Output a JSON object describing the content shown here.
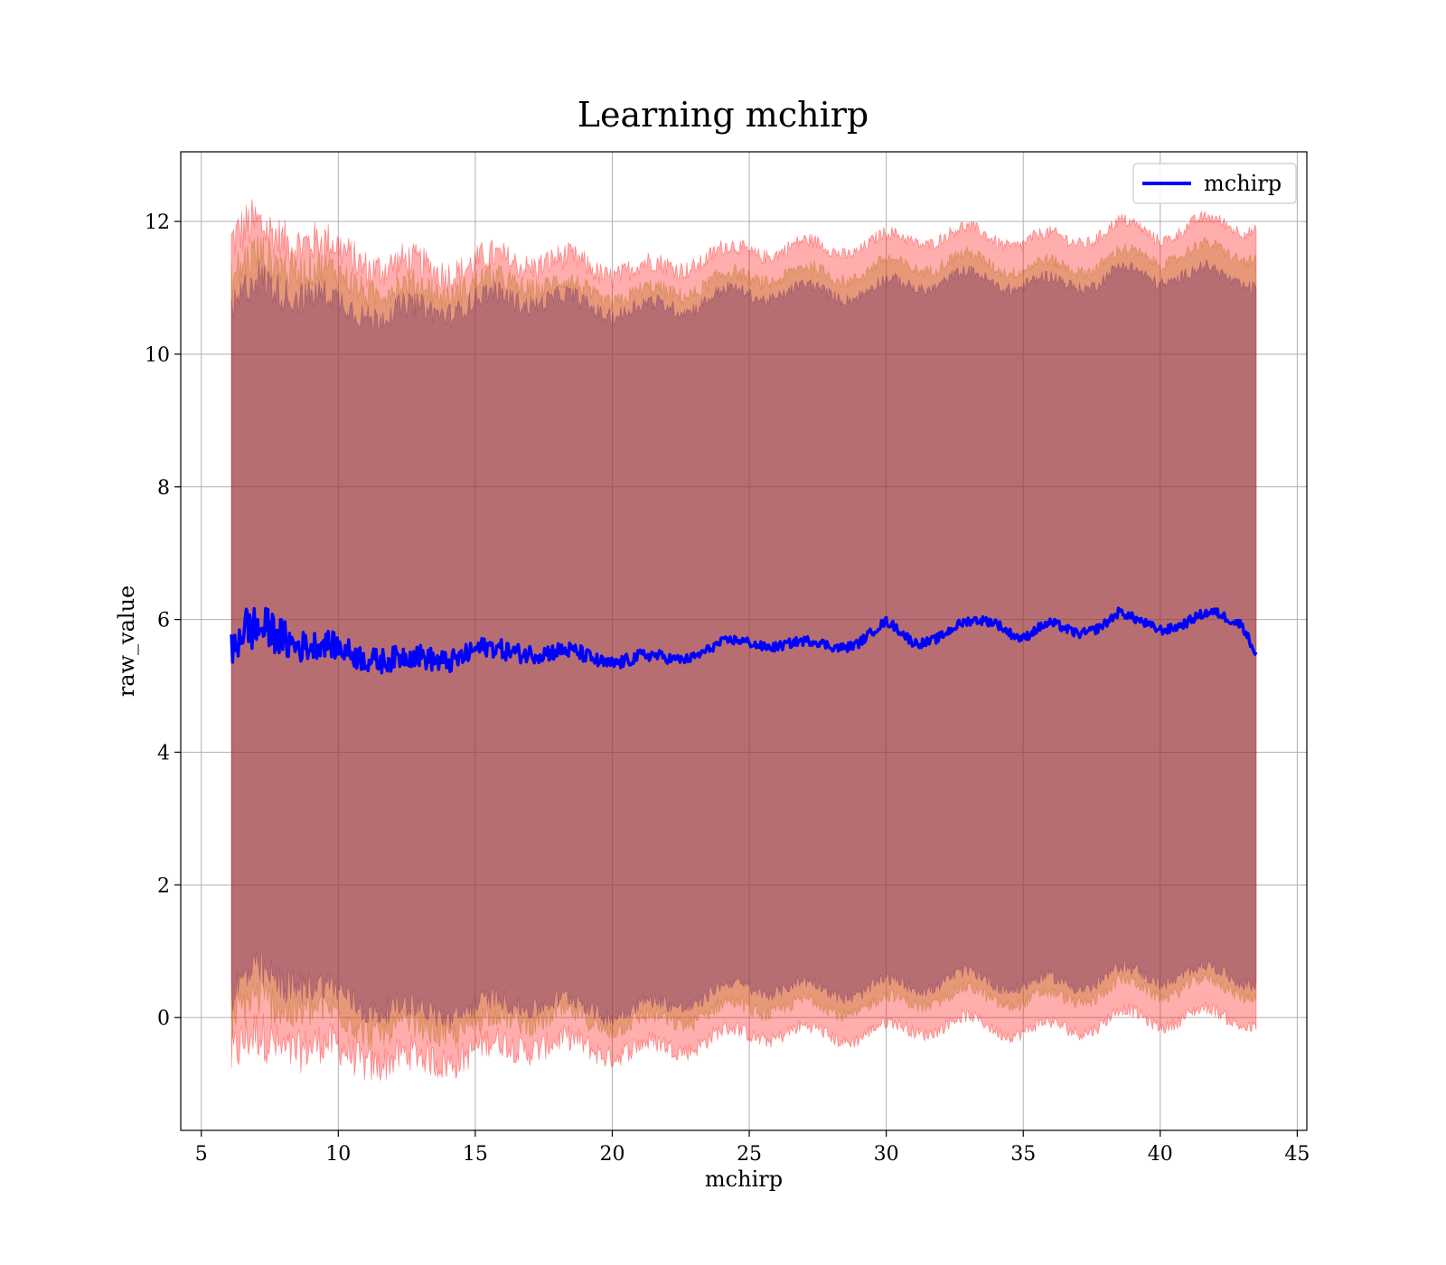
{
  "chart_data": {
    "type": "area",
    "title": "Learning mchirp",
    "xlabel": "mchirp",
    "ylabel": "raw_value",
    "xlim": [
      4.25,
      45.35
    ],
    "ylim": [
      -1.7,
      13.05
    ],
    "xticks": [
      5,
      10,
      15,
      20,
      25,
      30,
      35,
      40,
      45
    ],
    "yticks": [
      0,
      2,
      4,
      6,
      8,
      10,
      12
    ],
    "x_tick_labels": [
      "5",
      "10",
      "15",
      "20",
      "25",
      "30",
      "35",
      "40",
      "45"
    ],
    "y_tick_labels": [
      "0",
      "2",
      "4",
      "6",
      "8",
      "10",
      "12"
    ],
    "grid": true,
    "legend_position": "top-right",
    "x_range": [
      6.1,
      43.5
    ],
    "series": [
      {
        "name": "mchirp",
        "role": "mean line",
        "color": "#0000ff",
        "x": [
          6.1,
          6.5,
          7.0,
          7.5,
          8.0,
          8.5,
          9.0,
          9.5,
          10.0,
          11.0,
          12.0,
          13.0,
          14.0,
          15.0,
          16.0,
          17.0,
          18.0,
          19.0,
          20.0,
          21.0,
          22.0,
          23.0,
          24.0,
          25.0,
          26.0,
          27.0,
          28.0,
          29.0,
          30.0,
          31.0,
          32.0,
          33.0,
          34.0,
          35.0,
          36.0,
          37.0,
          38.0,
          38.5,
          39.0,
          40.0,
          41.0,
          42.0,
          43.0,
          43.5
        ],
        "values": [
          5.45,
          5.8,
          5.75,
          5.8,
          5.7,
          5.6,
          5.55,
          5.55,
          5.5,
          5.5,
          5.45,
          5.45,
          5.45,
          5.5,
          5.45,
          5.5,
          5.45,
          5.45,
          5.45,
          5.45,
          5.45,
          5.5,
          5.55,
          5.6,
          5.6,
          5.6,
          5.65,
          5.75,
          5.95,
          5.7,
          5.75,
          5.85,
          5.95,
          5.7,
          5.9,
          5.9,
          6.0,
          6.1,
          6.0,
          5.9,
          5.9,
          6.0,
          5.95,
          5.5
        ],
        "noise_amplitude": [
          0.35,
          0.35,
          0.35,
          0.3,
          0.3,
          0.25,
          0.22,
          0.2,
          0.2,
          0.2,
          0.18,
          0.18,
          0.18,
          0.15,
          0.15,
          0.14,
          0.13,
          0.12,
          0.1,
          0.1,
          0.08,
          0.07,
          0.07,
          0.07,
          0.07,
          0.07,
          0.07,
          0.07,
          0.07,
          0.07,
          0.07,
          0.07,
          0.07,
          0.07,
          0.07,
          0.07,
          0.07,
          0.07,
          0.07,
          0.07,
          0.07,
          0.07,
          0.07,
          0.07
        ]
      }
    ],
    "bands": [
      {
        "role": "outer band",
        "color": "#ff0000",
        "opacity": 0.32,
        "x": [
          6.1,
          7.0,
          8.0,
          10.0,
          15.0,
          20.0,
          25.0,
          30.0,
          35.0,
          38.5,
          40.0,
          43.5
        ],
        "upper": [
          11.7,
          11.8,
          11.7,
          11.5,
          11.3,
          11.35,
          11.45,
          11.8,
          11.65,
          12.0,
          11.8,
          11.9
        ],
        "lower": [
          -0.6,
          -0.4,
          -0.5,
          -0.55,
          -0.55,
          -0.4,
          -0.35,
          -0.1,
          -0.25,
          0.1,
          -0.05,
          -0.1
        ],
        "noise_amplitude": [
          0.4,
          0.4,
          0.35,
          0.3,
          0.25,
          0.18,
          0.12,
          0.1,
          0.1,
          0.1,
          0.1,
          0.1
        ]
      },
      {
        "role": "middle band",
        "color": "#b06b00",
        "opacity": 0.3,
        "x": [
          6.1,
          7.0,
          8.0,
          10.0,
          15.0,
          20.0,
          25.0,
          30.0,
          35.0,
          38.5,
          40.0,
          43.5
        ],
        "upper": [
          11.1,
          11.35,
          11.3,
          11.1,
          11.0,
          10.95,
          11.05,
          11.4,
          11.25,
          11.55,
          11.45,
          11.45
        ],
        "lower": [
          -0.05,
          0.15,
          0.1,
          -0.05,
          -0.15,
          0.0,
          0.05,
          0.3,
          0.2,
          0.55,
          0.4,
          0.35
        ],
        "noise_amplitude": [
          0.35,
          0.35,
          0.3,
          0.25,
          0.2,
          0.15,
          0.12,
          0.1,
          0.1,
          0.1,
          0.1,
          0.1
        ]
      },
      {
        "role": "inner band",
        "color": "#6a2a6a",
        "opacity": 0.38,
        "x": [
          6.1,
          7.0,
          8.0,
          10.0,
          15.0,
          20.0,
          25.0,
          30.0,
          35.0,
          38.5,
          40.0,
          43.5
        ],
        "upper": [
          10.6,
          11.0,
          10.9,
          10.7,
          10.75,
          10.75,
          10.8,
          11.1,
          11.0,
          11.3,
          11.15,
          11.05
        ],
        "lower": [
          0.35,
          0.55,
          0.5,
          0.3,
          0.1,
          0.2,
          0.35,
          0.55,
          0.45,
          0.75,
          0.6,
          0.55
        ],
        "noise_amplitude": [
          0.3,
          0.3,
          0.28,
          0.22,
          0.18,
          0.14,
          0.1,
          0.1,
          0.1,
          0.1,
          0.1,
          0.1
        ]
      }
    ]
  }
}
